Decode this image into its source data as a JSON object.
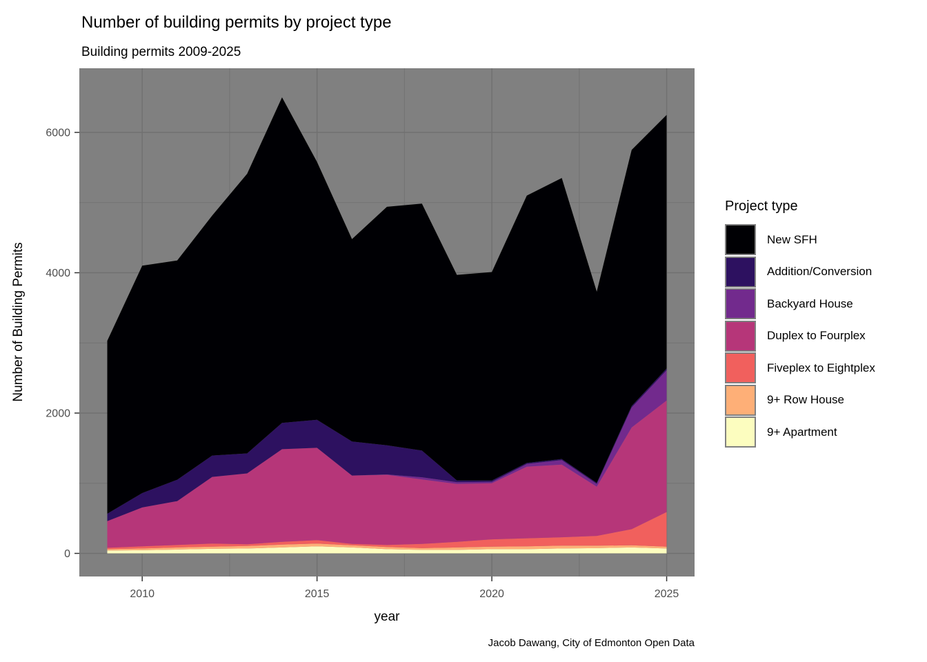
{
  "title": "Number of building permits by project type",
  "subtitle": "Building permits 2009-2025",
  "caption": "Jacob Dawang, City of Edmonton Open Data",
  "axes": {
    "x_label": "year",
    "y_label": "Number of Building Permits",
    "x_major_ticks": [
      2010,
      2015,
      2020,
      2025
    ],
    "x_minor_ticks": [
      2012.5,
      2017.5,
      2022.5
    ],
    "y_major_ticks": [
      0,
      2000,
      4000,
      6000
    ],
    "y_minor_ticks": [
      1000,
      3000,
      5000
    ]
  },
  "legend": {
    "title": "Project type",
    "entries": [
      {
        "id": "sfh",
        "label": "New SFH",
        "color": "#000004"
      },
      {
        "id": "addition",
        "label": "Addition/Conversion",
        "color": "#2D1160"
      },
      {
        "id": "backyard",
        "label": "Backyard House",
        "color": "#722A8D"
      },
      {
        "id": "duplex",
        "label": "Duplex to Fourplex",
        "color": "#B63679"
      },
      {
        "id": "fiveplex",
        "label": "Fiveplex to Eightplex",
        "color": "#F1605D"
      },
      {
        "id": "row_house",
        "label": "9+ Row House",
        "color": "#FEAF77"
      },
      {
        "id": "apartment",
        "label": "9+ Apartment",
        "color": "#FCFDBF"
      }
    ]
  },
  "colors": {
    "panel_background": "#808080",
    "grid_major": "#707070",
    "grid_minor": "#747474",
    "tick_mark": "#333333",
    "tick_label": "#4D4D4D",
    "text": "#000000"
  },
  "chart_data": {
    "type": "area",
    "stacked": true,
    "title": "Number of building permits by project type",
    "subtitle": "Building permits 2009-2025",
    "xlabel": "year",
    "ylabel": "Number of Building Permits",
    "x": [
      2009,
      2010,
      2011,
      2012,
      2013,
      2014,
      2015,
      2016,
      2017,
      2018,
      2019,
      2020,
      2021,
      2022,
      2023,
      2024,
      2025
    ],
    "xlim": [
      2008.2,
      2025.8
    ],
    "ylim": [
      -330,
      6920
    ],
    "grid": true,
    "legend_position": "right",
    "stack_bottom_to_top": [
      "apartment",
      "row_house",
      "fiveplex",
      "duplex",
      "backyard",
      "addition",
      "sfh"
    ],
    "series": [
      {
        "id": "apartment",
        "name": "9+ Apartment",
        "values": [
          40,
          45,
          55,
          65,
          70,
          85,
          100,
          85,
          60,
          50,
          50,
          60,
          60,
          70,
          75,
          85,
          70
        ]
      },
      {
        "id": "row_house",
        "name": "9+ Row House",
        "values": [
          20,
          25,
          30,
          30,
          35,
          40,
          40,
          30,
          30,
          25,
          35,
          35,
          40,
          40,
          35,
          30,
          25
        ]
      },
      {
        "id": "fiveplex",
        "name": "Fiveplex to Eightplex",
        "values": [
          20,
          30,
          35,
          45,
          25,
          40,
          50,
          20,
          30,
          60,
          80,
          105,
          115,
          120,
          140,
          230,
          495
        ]
      },
      {
        "id": "duplex",
        "name": "Duplex to Fourplex",
        "values": [
          380,
          555,
          625,
          950,
          1010,
          1320,
          1315,
          975,
          1000,
          920,
          825,
          800,
          1020,
          1035,
          700,
          1450,
          1590
        ]
      },
      {
        "id": "backyard",
        "name": "Backyard House",
        "values": [
          0,
          0,
          0,
          0,
          0,
          0,
          0,
          0,
          5,
          30,
          25,
          20,
          40,
          65,
          40,
          285,
          430
        ]
      },
      {
        "id": "addition",
        "name": "Addition/Conversion",
        "values": [
          105,
          205,
          305,
          305,
          285,
          375,
          400,
          485,
          415,
          380,
          25,
          20,
          15,
          15,
          15,
          20,
          25
        ]
      },
      {
        "id": "sfh",
        "name": "New SFH",
        "values": [
          2465,
          3240,
          3125,
          3420,
          3985,
          4640,
          3675,
          2885,
          3400,
          3520,
          2930,
          2970,
          3810,
          4005,
          2725,
          3650,
          3615
        ]
      }
    ],
    "totals": [
      3030,
      4100,
      4175,
      4815,
      5410,
      6500,
      5580,
      4480,
      4940,
      4985,
      3970,
      4010,
      5100,
      5350,
      3730,
      5750,
      6250
    ]
  }
}
